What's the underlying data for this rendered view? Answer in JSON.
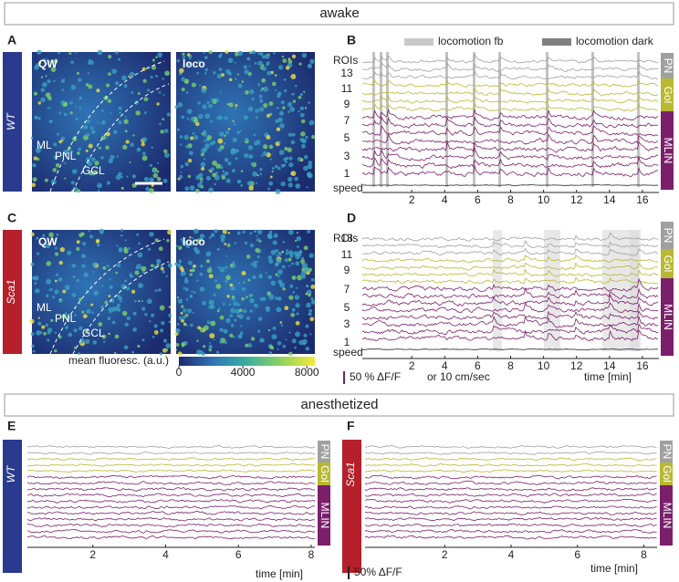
{
  "sections": {
    "awake": "awake",
    "anesthetized": "anesthetized"
  },
  "panels": {
    "A": {
      "letter": "A",
      "genotype": "WT",
      "images": [
        "QW",
        "loco"
      ],
      "regions": [
        "ML",
        "PNL",
        "GCL"
      ]
    },
    "C": {
      "letter": "C",
      "genotype": "Sca1",
      "images": [
        "QW",
        "loco"
      ],
      "regions": [
        "ML",
        "PNL",
        "GCL"
      ]
    },
    "colorbar": {
      "label": "mean fluoresc. (a.u.)",
      "xlim": [
        0,
        8500
      ],
      "xticks": [
        0,
        4000,
        8000
      ]
    },
    "B": {
      "letter": "B",
      "legend": [
        "locomotion fb",
        "locomotion dark"
      ],
      "rows_label": "ROIs",
      "rows": [
        13,
        11,
        9,
        7,
        5,
        3,
        1
      ],
      "speed_label": "speed",
      "groups": [
        "PN",
        "Gol",
        "MLIN"
      ],
      "xlim": [
        -1,
        17
      ],
      "xticks": [
        2,
        4,
        6,
        8,
        10,
        12,
        14,
        16
      ]
    },
    "D": {
      "letter": "D",
      "rows_label": "ROIs",
      "rows": [
        13,
        11,
        9,
        7,
        5,
        3,
        1
      ],
      "speed_label": "speed",
      "groups": [
        "PN",
        "Gol",
        "MLIN"
      ],
      "xlim": [
        -1,
        17
      ],
      "xticks": [
        2,
        4,
        6,
        8,
        10,
        12,
        14,
        16
      ],
      "scale_bar": "50 % ΔF/F",
      "scale_note": "or 10 cm/sec",
      "xlabel": "time [min]"
    },
    "E": {
      "letter": "E",
      "genotype": "WT",
      "groups": [
        "PN",
        "Gol",
        "MLIN"
      ],
      "xlim": [
        0.2,
        8.1
      ],
      "xticks": [
        2,
        4,
        6,
        8
      ],
      "xlabel": "time [min]"
    },
    "F": {
      "letter": "F",
      "genotype": "Sca1",
      "groups": [
        "PN",
        "Gol",
        "MLIN"
      ],
      "xlim": [
        -0.4,
        8.4
      ],
      "xticks": [
        2,
        4,
        6,
        8
      ],
      "scale_bar": "50% ΔF/F",
      "xlabel": "time [min]"
    }
  }
}
